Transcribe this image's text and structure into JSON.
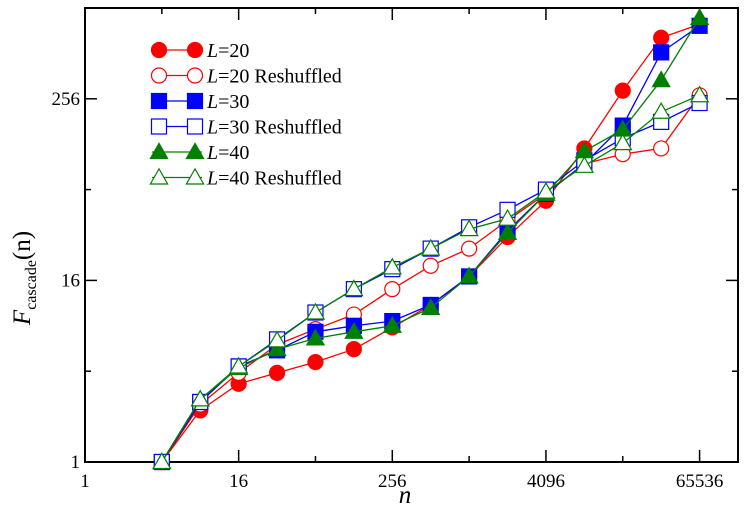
{
  "chart_data": {
    "type": "line",
    "title": "",
    "xlabel": "n",
    "ylabel_main": "F",
    "ylabel_sub": "cascade",
    "ylabel_arg": "(n)",
    "x_scale": "log2",
    "y_scale": "log2",
    "xlim": [
      1,
      131072
    ],
    "ylim": [
      1,
      1024
    ],
    "x_ticks": [
      1,
      16,
      256,
      4096,
      65536
    ],
    "x_tick_labels": [
      "1",
      "16",
      "256",
      "4096",
      "65536"
    ],
    "y_ticks": [
      1,
      16,
      256
    ],
    "y_tick_labels": [
      "1",
      "16",
      "256"
    ],
    "grid": false,
    "legend_position": "top-left",
    "series": [
      {
        "name": "L=20",
        "label_var": "L",
        "label_rest": "=20",
        "color": "#ff0000",
        "marker": "circle",
        "filled": true,
        "x": [
          4,
          8,
          16,
          32,
          64,
          128,
          256,
          512,
          1024,
          2048,
          4096,
          8192,
          16384,
          32768,
          65536
        ],
        "y": [
          1,
          2.2,
          3.3,
          3.9,
          4.6,
          5.6,
          7.8,
          11,
          17,
          31,
          54,
          120,
          290,
          650,
          800
        ]
      },
      {
        "name": "L=20 Reshuffled",
        "label_var": "L",
        "label_rest": "=20 Reshuffled",
        "color": "#ff0000",
        "marker": "circle",
        "filled": false,
        "x": [
          4,
          8,
          16,
          32,
          64,
          128,
          256,
          512,
          1024,
          2048,
          4096,
          8192,
          16384,
          32768,
          65536
        ],
        "y": [
          1,
          2.4,
          3.9,
          6,
          7.6,
          9.5,
          14,
          20,
          26,
          40,
          60,
          95,
          110,
          120,
          270
        ]
      },
      {
        "name": "L=30",
        "label_var": "L",
        "label_rest": "=30",
        "color": "#0000ff",
        "marker": "square",
        "filled": true,
        "x": [
          4,
          8,
          16,
          32,
          64,
          128,
          256,
          512,
          1024,
          2048,
          4096,
          8192,
          16384,
          32768,
          65536
        ],
        "y": [
          1,
          2.5,
          4.3,
          5.5,
          7.3,
          8,
          8.6,
          11,
          17,
          34,
          60,
          95,
          170,
          520,
          780
        ]
      },
      {
        "name": "L=30 Reshuffled",
        "label_var": "L",
        "label_rest": "=30 Reshuffled",
        "color": "#0000ff",
        "marker": "square",
        "filled": false,
        "x": [
          4,
          8,
          16,
          32,
          64,
          128,
          256,
          512,
          1024,
          2048,
          4096,
          8192,
          16384,
          32768,
          65536
        ],
        "y": [
          1,
          2.5,
          4.3,
          6.5,
          9.8,
          14,
          19,
          26,
          36,
          47,
          64,
          100,
          140,
          180,
          240
        ]
      },
      {
        "name": "L=40",
        "label_var": "L",
        "label_rest": "=40",
        "color": "#008000",
        "marker": "triangle",
        "filled": true,
        "x": [
          4,
          8,
          16,
          32,
          64,
          128,
          256,
          512,
          1024,
          2048,
          4096,
          8192,
          16384,
          32768,
          65536
        ],
        "y": [
          1,
          2.6,
          4.2,
          5.6,
          6.6,
          7.3,
          8,
          10.5,
          17,
          33,
          60,
          115,
          160,
          340,
          880
        ]
      },
      {
        "name": "L=40 Reshuffled",
        "label_var": "L",
        "label_rest": "=40 Reshuffled",
        "color": "#008000",
        "marker": "triangle",
        "filled": false,
        "x": [
          4,
          8,
          16,
          32,
          64,
          128,
          256,
          512,
          1024,
          2048,
          4096,
          8192,
          16384,
          32768,
          65536
        ],
        "y": [
          1,
          2.6,
          4.3,
          6.4,
          9.8,
          14,
          19.5,
          26,
          35,
          41,
          62,
          92,
          130,
          210,
          270
        ]
      }
    ]
  }
}
